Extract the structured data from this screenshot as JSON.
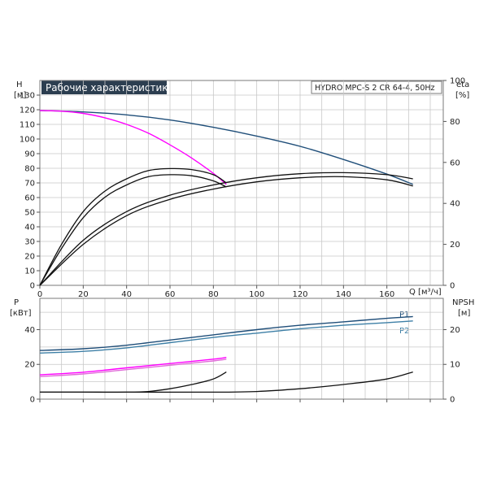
{
  "colors": {
    "title_bg": "#2c3e50",
    "title_fg": "#ffffff",
    "navy": "#1f4e79",
    "teal": "#3d7fa6",
    "magenta": "#ff00ff",
    "pink": "#e06ad8",
    "black": "#111111",
    "grid": "#c8c8c8"
  },
  "header": {
    "title": "Рабочие характеристики",
    "model": "HYDRO MPC-S 2 CR 64-4, 50Hz"
  },
  "top_panel": {
    "left_axis_label": "H",
    "left_axis_unit": "[м]",
    "right_axis_label": "eta",
    "right_axis_unit": "[%]",
    "x_axis_label": "Q [м³/ч]"
  },
  "bottom_panel": {
    "left_axis_label": "P",
    "left_axis_unit": "[кВт]",
    "right_axis_label": "NPSH",
    "right_axis_unit": "[м]",
    "label_p1": "P1",
    "label_p2": "P2"
  },
  "chart_data": [
    {
      "type": "line",
      "panel": "head-efficiency",
      "title": "Рабочие характеристики",
      "subtitle": "HYDRO MPC-S 2 CR 64-4, 50Hz",
      "xlabel": "Q [м³/ч]",
      "ylabel": "H [м]",
      "y2label": "eta [%]",
      "xlim": [
        0,
        186
      ],
      "ylim": [
        0,
        140
      ],
      "y2lim": [
        0,
        100
      ],
      "x_ticks": [
        0,
        20,
        40,
        60,
        80,
        100,
        120,
        140,
        160
      ],
      "y_ticks": [
        0,
        10,
        20,
        30,
        40,
        50,
        60,
        70,
        80,
        90,
        100,
        110,
        120,
        130
      ],
      "y2_ticks": [
        0,
        20,
        40,
        60,
        80,
        100
      ],
      "grid": true,
      "series": [
        {
          "id": "head-2-pumps",
          "axis": "left",
          "color": "navy",
          "x": [
            0,
            20,
            40,
            60,
            80,
            100,
            120,
            140,
            160,
            172
          ],
          "y": [
            119.5,
            118.5,
            116.5,
            113,
            108,
            102,
            95,
            86,
            76,
            69
          ]
        },
        {
          "id": "head-1-pump",
          "axis": "left",
          "color": "magenta",
          "x": [
            0,
            10,
            20,
            30,
            40,
            50,
            60,
            70,
            80,
            86
          ],
          "y": [
            119.5,
            119,
            117.5,
            114.5,
            110,
            104,
            96,
            87,
            76.5,
            69
          ]
        },
        {
          "id": "eta-1-pump-a",
          "axis": "right",
          "color": "black",
          "x": [
            0,
            10,
            20,
            30,
            40,
            50,
            60,
            70,
            80,
            86
          ],
          "y": [
            0,
            20,
            36,
            46,
            52,
            56,
            57,
            56.5,
            54,
            50
          ]
        },
        {
          "id": "eta-1-pump-b",
          "axis": "right",
          "color": "black",
          "x": [
            0,
            10,
            20,
            30,
            40,
            50,
            60,
            70,
            80,
            86
          ],
          "y": [
            0,
            18,
            33,
            43,
            49,
            53,
            54,
            53.5,
            51,
            48
          ]
        },
        {
          "id": "eta-2-pumps-a",
          "axis": "right",
          "color": "black",
          "x": [
            0,
            20,
            40,
            60,
            80,
            100,
            120,
            140,
            160,
            172
          ],
          "y": [
            0,
            22,
            36,
            44,
            49,
            52.5,
            54.5,
            55,
            54,
            52
          ]
        },
        {
          "id": "eta-2-pumps-b",
          "axis": "right",
          "color": "black",
          "x": [
            0,
            20,
            40,
            60,
            80,
            100,
            120,
            140,
            160,
            172
          ],
          "y": [
            0,
            20,
            34,
            42,
            47,
            50.5,
            52.5,
            53,
            51.5,
            48.5
          ]
        }
      ]
    },
    {
      "type": "line",
      "panel": "power-npsh",
      "xlim": [
        0,
        186
      ],
      "ylim": [
        0,
        58
      ],
      "y2lim": [
        0,
        29
      ],
      "y_ticks": [
        0,
        20,
        40
      ],
      "y2_ticks": [
        0,
        10,
        20
      ],
      "ylabel": "P [кВт]",
      "y2label": "NPSH [м]",
      "grid": true,
      "series": [
        {
          "id": "p1-2-pumps",
          "name": "P1",
          "axis": "left",
          "color": "navy",
          "x": [
            0,
            20,
            40,
            60,
            80,
            100,
            120,
            140,
            160,
            172
          ],
          "y": [
            28,
            29,
            31,
            34,
            37,
            40,
            42.5,
            44.5,
            46.5,
            47.5
          ]
        },
        {
          "id": "p2-2-pumps",
          "name": "P2",
          "axis": "left",
          "color": "teal",
          "x": [
            0,
            20,
            40,
            60,
            80,
            100,
            120,
            140,
            160,
            172
          ],
          "y": [
            26.5,
            27.5,
            29.5,
            32.5,
            35.5,
            38,
            40.5,
            42.5,
            44,
            45
          ]
        },
        {
          "id": "p1-1-pump",
          "axis": "left",
          "color": "magenta",
          "x": [
            0,
            20,
            40,
            60,
            80,
            86
          ],
          "y": [
            14,
            15.5,
            18,
            20.5,
            23,
            24
          ]
        },
        {
          "id": "p2-1-pump",
          "axis": "left",
          "color": "pink",
          "x": [
            0,
            20,
            40,
            60,
            80,
            86
          ],
          "y": [
            13,
            14.5,
            17,
            19.5,
            22,
            23
          ]
        },
        {
          "id": "npsh-1-pump",
          "axis": "right",
          "color": "black",
          "x": [
            0,
            20,
            40,
            50,
            60,
            70,
            80,
            86
          ],
          "y": [
            2,
            2,
            2,
            2.2,
            3,
            4.2,
            5.8,
            7.8
          ]
        },
        {
          "id": "npsh-2-pumps",
          "axis": "right",
          "color": "black",
          "x": [
            0,
            40,
            80,
            100,
            120,
            140,
            160,
            172
          ],
          "y": [
            2,
            2,
            2,
            2.2,
            3,
            4.2,
            5.8,
            7.8
          ]
        }
      ]
    }
  ]
}
